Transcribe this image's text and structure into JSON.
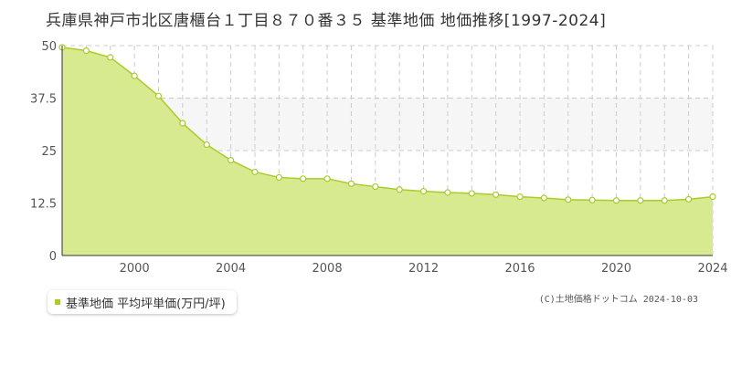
{
  "chart_data": {
    "type": "area",
    "title": "兵庫県神戸市北区唐櫃台１丁目８７０番３５ 基準地価 地価推移[1997-2024]",
    "xlabel": "",
    "ylabel": "",
    "xlim": [
      1997,
      2024
    ],
    "ylim": [
      0,
      50
    ],
    "yticks": [
      0,
      12.5,
      25,
      37.5,
      50
    ],
    "ytick_labels": [
      "0",
      "12.5",
      "25",
      "37.5",
      "50"
    ],
    "xticks": [
      2000,
      2004,
      2008,
      2012,
      2016,
      2020,
      2024
    ],
    "xtick_labels": [
      "2000",
      "2004",
      "2008",
      "2012",
      "2016",
      "2020",
      "2024"
    ],
    "grid": true,
    "legend_position": "bottom-left",
    "colors": {
      "line": "#a8cc2a",
      "fill": "#d8ea8f",
      "band": "#f6f6f6",
      "grid": "#cccccc"
    },
    "series": [
      {
        "name": "基準地価 平均坪単価(万円/坪)",
        "x": [
          1997,
          1998,
          1999,
          2000,
          2001,
          2002,
          2003,
          2004,
          2005,
          2006,
          2007,
          2008,
          2009,
          2010,
          2011,
          2012,
          2013,
          2014,
          2015,
          2016,
          2017,
          2018,
          2019,
          2020,
          2021,
          2022,
          2023,
          2024
        ],
        "values": [
          49.6,
          48.8,
          47.2,
          42.8,
          38.0,
          31.5,
          26.4,
          22.7,
          19.9,
          18.6,
          18.3,
          18.3,
          17.1,
          16.4,
          15.7,
          15.3,
          15.0,
          14.8,
          14.5,
          14.0,
          13.7,
          13.3,
          13.2,
          13.1,
          13.1,
          13.1,
          13.4,
          14.0
        ]
      }
    ]
  },
  "credit": "(C)土地価格ドットコム 2024-10-03"
}
